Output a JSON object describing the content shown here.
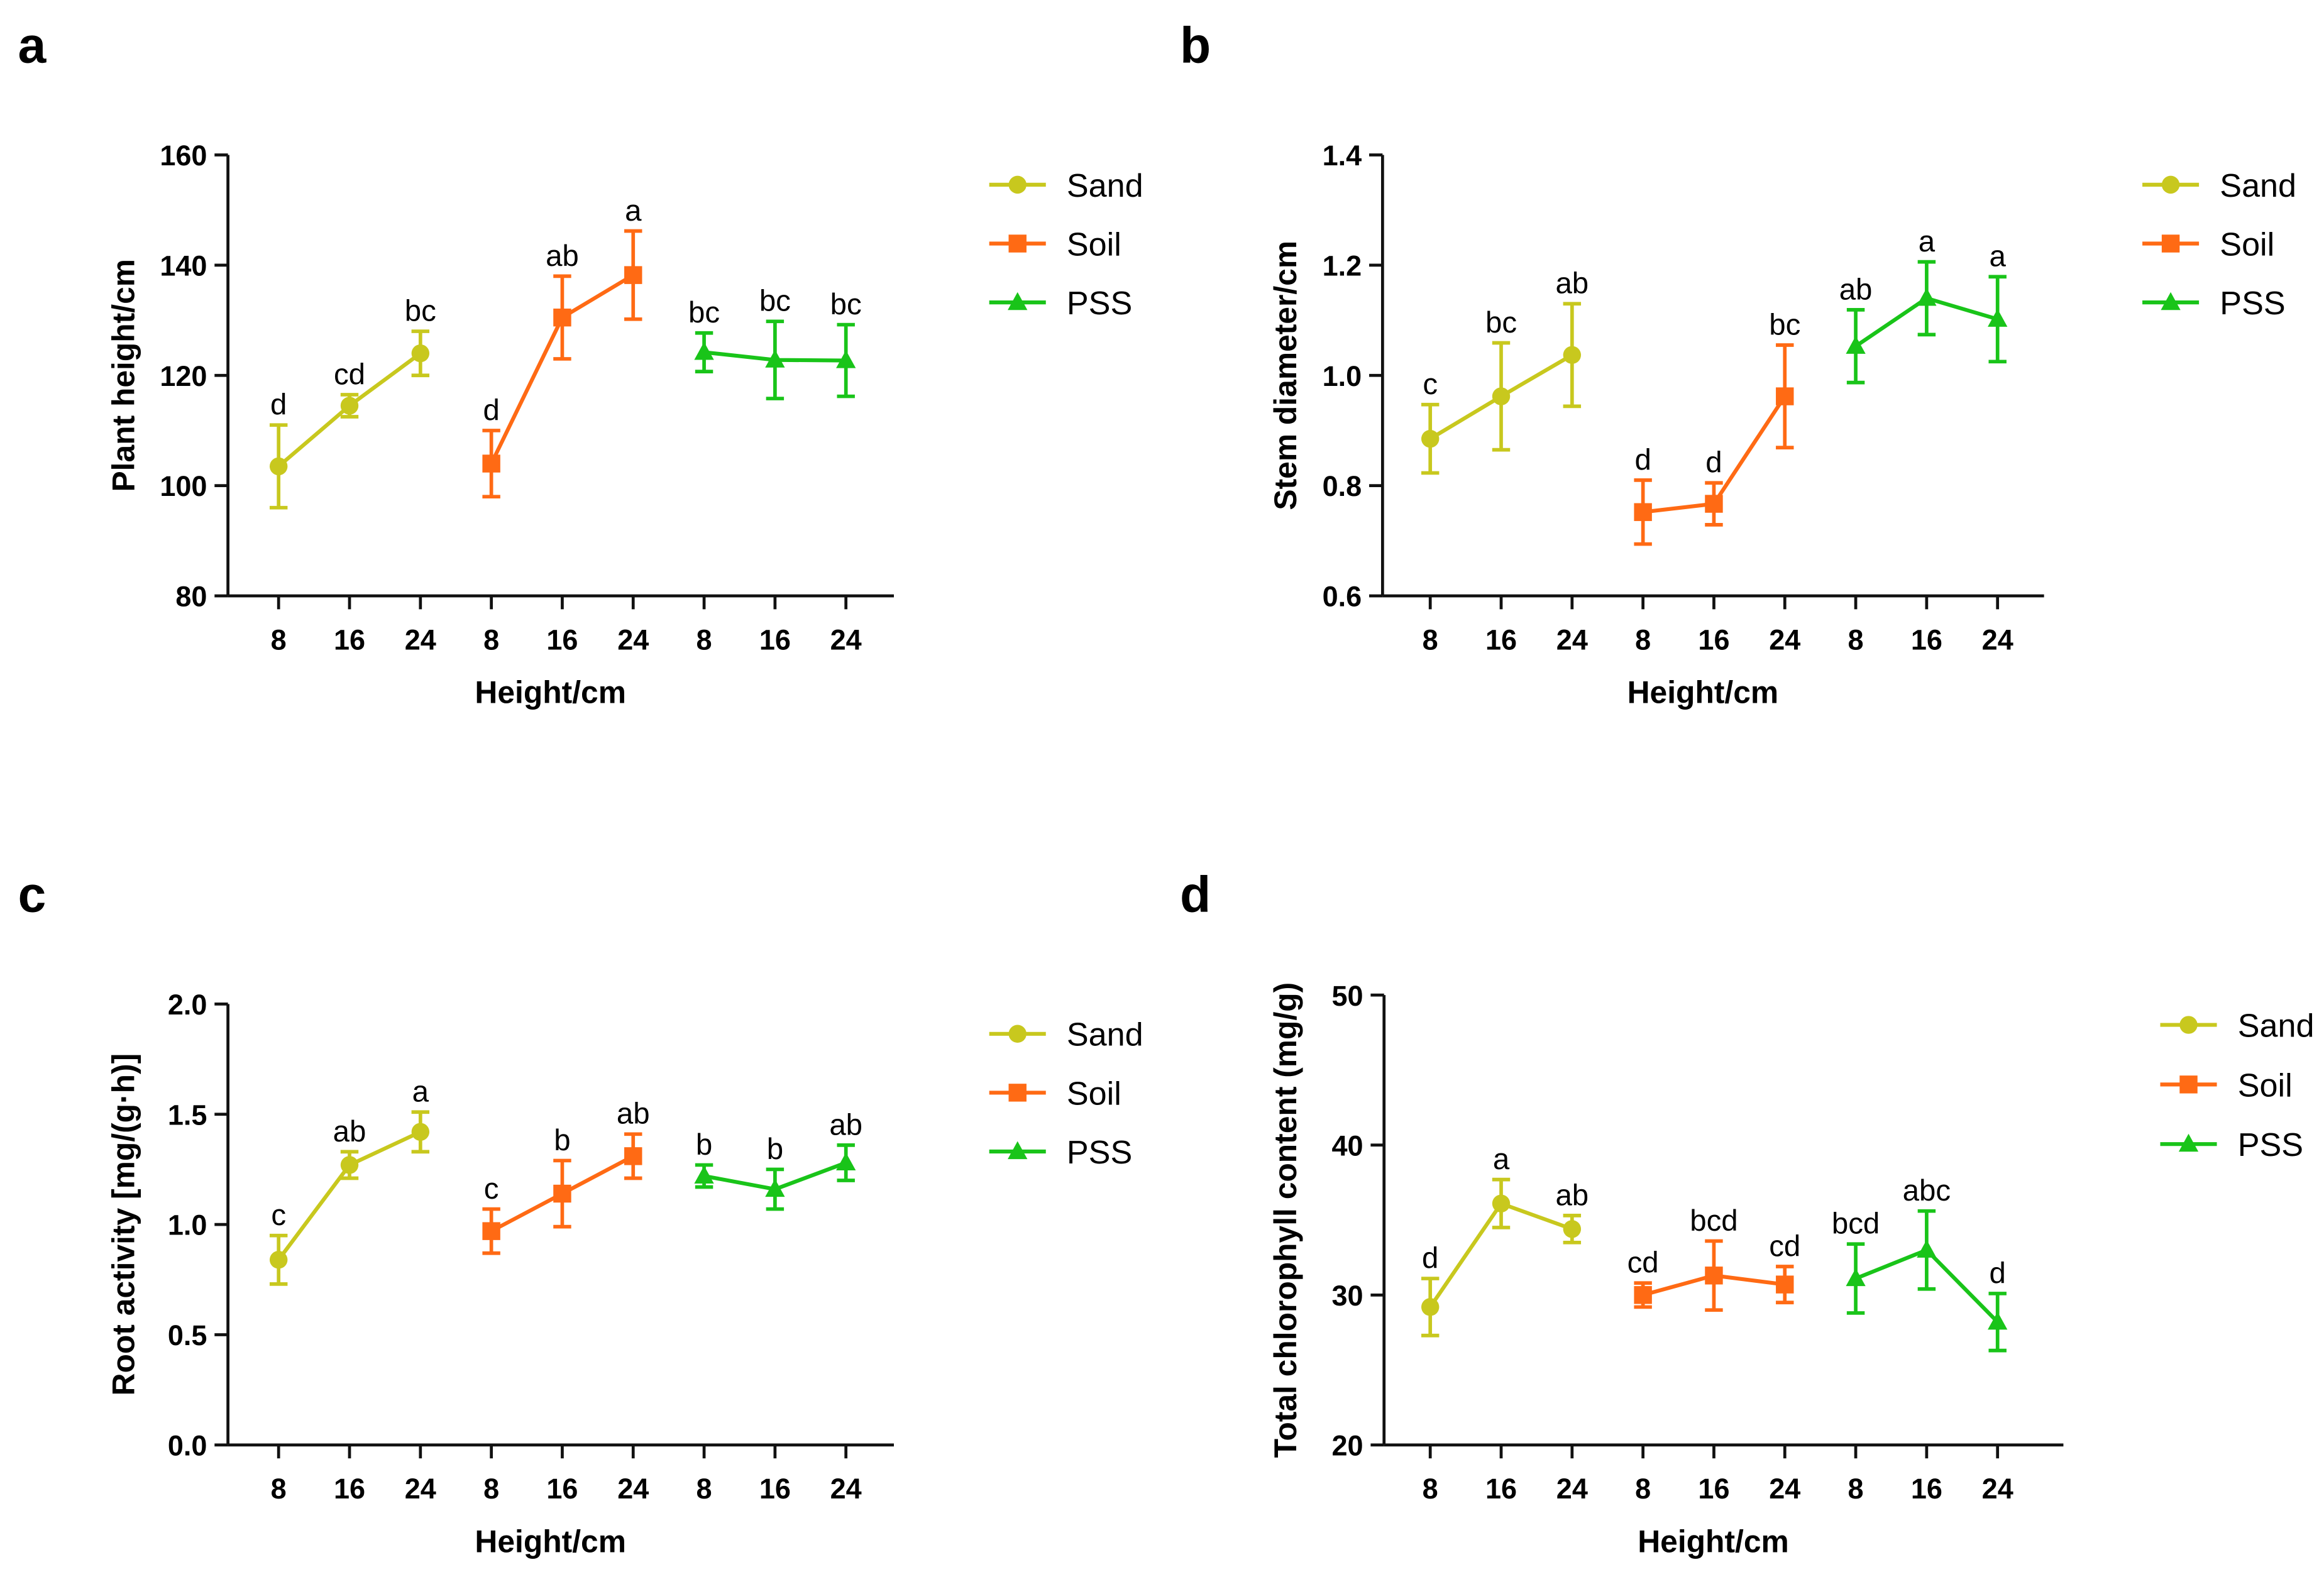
{
  "chart_data": [
    {
      "type": "line",
      "panel_label": "a",
      "xlabel": "Height/cm",
      "ylabel": "Plant height/cm",
      "ylim": [
        80,
        160
      ],
      "yticks": [
        80,
        100,
        120,
        140,
        160
      ],
      "grid": false,
      "legend_position": "right",
      "groups": [
        {
          "name": "Sand",
          "color": "#c8c81e",
          "marker": "circle",
          "x": [
            "8",
            "16",
            "24"
          ],
          "values": [
            103.5,
            114.5,
            124
          ],
          "err": [
            7.5,
            2,
            4
          ],
          "letters": [
            "d",
            "cd",
            "bc"
          ]
        },
        {
          "name": "Soil",
          "color": "#ff6a14",
          "marker": "square",
          "x": [
            "8",
            "16",
            "24"
          ],
          "values": [
            104,
            130.5,
            138.2
          ],
          "err": [
            6,
            7.5,
            8
          ],
          "letters": [
            "d",
            "ab",
            "a"
          ]
        },
        {
          "name": "PSS",
          "color": "#19c419",
          "marker": "triangle",
          "x": [
            "8",
            "16",
            "24"
          ],
          "values": [
            124.2,
            122.8,
            122.7
          ],
          "err": [
            3.5,
            7,
            6.5
          ],
          "letters": [
            "bc",
            "bc",
            "bc"
          ]
        }
      ]
    },
    {
      "type": "line",
      "panel_label": "b",
      "xlabel": "Height/cm",
      "ylabel": "Stem diameter/cm",
      "ylim": [
        0.6,
        1.4
      ],
      "yticks": [
        "0.6",
        "0.8",
        "1.0",
        "1.2",
        "1.4"
      ],
      "grid": false,
      "legend_position": "right",
      "groups": [
        {
          "name": "Sand",
          "color": "#c8c81e",
          "marker": "circle",
          "x": [
            "8",
            "16",
            "24"
          ],
          "values": [
            0.885,
            0.962,
            1.037
          ],
          "err": [
            0.062,
            0.097,
            0.093
          ],
          "letters": [
            "c",
            "bc",
            "ab"
          ]
        },
        {
          "name": "Soil",
          "color": "#ff6a14",
          "marker": "square",
          "x": [
            "8",
            "16",
            "24"
          ],
          "values": [
            0.752,
            0.767,
            0.962
          ],
          "err": [
            0.058,
            0.038,
            0.093
          ],
          "letters": [
            "d",
            "d",
            "bc"
          ]
        },
        {
          "name": "PSS",
          "color": "#19c419",
          "marker": "triangle",
          "x": [
            "8",
            "16",
            "24"
          ],
          "values": [
            1.053,
            1.14,
            1.102
          ],
          "err": [
            0.066,
            0.066,
            0.077
          ],
          "letters": [
            "ab",
            "a",
            "a"
          ]
        }
      ]
    },
    {
      "type": "line",
      "panel_label": "c",
      "xlabel": "Height/cm",
      "ylabel": "Root activity [mg/(g·h)]",
      "ylim": [
        0,
        2
      ],
      "yticks": [
        "0.0",
        "0.5",
        "1.0",
        "1.5",
        "2.0"
      ],
      "grid": false,
      "legend_position": "right",
      "groups": [
        {
          "name": "Sand",
          "color": "#c8c81e",
          "marker": "circle",
          "x": [
            "8",
            "16",
            "24"
          ],
          "values": [
            0.84,
            1.27,
            1.42
          ],
          "err": [
            0.11,
            0.06,
            0.09
          ],
          "letters": [
            "c",
            "ab",
            "a"
          ]
        },
        {
          "name": "Soil",
          "color": "#ff6a14",
          "marker": "square",
          "x": [
            "8",
            "16",
            "24"
          ],
          "values": [
            0.97,
            1.14,
            1.31
          ],
          "err": [
            0.1,
            0.15,
            0.1
          ],
          "letters": [
            "c",
            "b",
            "ab"
          ]
        },
        {
          "name": "PSS",
          "color": "#19c419",
          "marker": "triangle",
          "x": [
            "8",
            "16",
            "24"
          ],
          "values": [
            1.22,
            1.16,
            1.28
          ],
          "err": [
            0.05,
            0.09,
            0.08
          ],
          "letters": [
            "b",
            "b",
            "ab"
          ]
        }
      ]
    },
    {
      "type": "line",
      "panel_label": "d",
      "xlabel": "Height/cm",
      "ylabel": "Total chlorophyll content (mg/g)",
      "ylim": [
        20,
        50
      ],
      "yticks": [
        20,
        30,
        40,
        50
      ],
      "grid": false,
      "legend_position": "right",
      "groups": [
        {
          "name": "Sand",
          "color": "#c8c81e",
          "marker": "circle",
          "x": [
            "8",
            "16",
            "24"
          ],
          "values": [
            29.2,
            36.1,
            34.4
          ],
          "err": [
            1.9,
            1.6,
            0.9
          ],
          "letters": [
            "d",
            "a",
            "ab"
          ]
        },
        {
          "name": "Soil",
          "color": "#ff6a14",
          "marker": "square",
          "x": [
            "8",
            "16",
            "24"
          ],
          "values": [
            30,
            31.3,
            30.7
          ],
          "err": [
            0.8,
            2.3,
            1.2
          ],
          "letters": [
            "cd",
            "bcd",
            "cd"
          ]
        },
        {
          "name": "PSS",
          "color": "#19c419",
          "marker": "triangle",
          "x": [
            "8",
            "16",
            "24"
          ],
          "values": [
            31.1,
            33,
            28.2
          ],
          "err": [
            2.3,
            2.6,
            1.9
          ],
          "letters": [
            "bcd",
            "abc",
            "d"
          ]
        }
      ]
    }
  ]
}
